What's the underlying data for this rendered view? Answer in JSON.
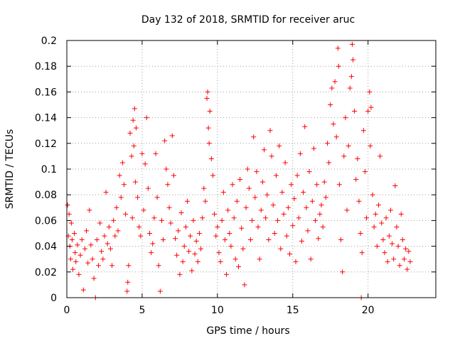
{
  "chart_data": {
    "type": "scatter",
    "title": "Day 132 of 2018, SRMTID for receiver aruc",
    "xlabel": "GPS time / hours",
    "ylabel": "SRMTID / TECUs",
    "xlim": [
      0,
      24.5
    ],
    "ylim": [
      0,
      0.2
    ],
    "x_ticks": [
      0,
      5,
      10,
      15,
      20
    ],
    "x_tick_labels": [
      "0",
      "5",
      "10",
      "15",
      "20"
    ],
    "y_ticks": [
      0,
      0.02,
      0.04,
      0.06,
      0.08,
      0.1,
      0.12,
      0.14,
      0.16,
      0.18,
      0.2
    ],
    "y_tick_labels": [
      "0",
      "0.02",
      "0.04",
      "0.06",
      "0.08",
      "0.1",
      "0.12",
      "0.14",
      "0.16",
      "0.18",
      "0.2"
    ],
    "grid": true,
    "marker": "plus",
    "point_color": "#ff0000",
    "series": [
      {
        "name": "SRMTID",
        "points": [
          [
            0.05,
            0.072
          ],
          [
            0.1,
            0.048
          ],
          [
            0.15,
            0.065
          ],
          [
            0.2,
            0.04
          ],
          [
            0.25,
            0.03
          ],
          [
            0.3,
            0.058
          ],
          [
            0.35,
            0.045
          ],
          [
            0.4,
            0.022
          ],
          [
            0.5,
            0.05
          ],
          [
            0.55,
            0.035
          ],
          [
            0.6,
            0.028
          ],
          [
            0.7,
            0.041
          ],
          [
            0.8,
            0.018
          ],
          [
            0.9,
            0.033
          ],
          [
            1.0,
            0.045
          ],
          [
            1.1,
            0.006
          ],
          [
            1.2,
            0.038
          ],
          [
            1.3,
            0.052
          ],
          [
            1.4,
            0.027
          ],
          [
            1.5,
            0.068
          ],
          [
            1.6,
            0.041
          ],
          [
            1.7,
            0.03
          ],
          [
            1.8,
            0.015
          ],
          [
            1.9,
            0.0
          ],
          [
            2.0,
            0.045
          ],
          [
            2.1,
            0.025
          ],
          [
            2.2,
            0.058
          ],
          [
            2.3,
            0.036
          ],
          [
            2.4,
            0.03
          ],
          [
            2.5,
            0.048
          ],
          [
            2.6,
            0.082
          ],
          [
            2.7,
            0.042
          ],
          [
            2.8,
            0.055
          ],
          [
            2.9,
            0.038
          ],
          [
            3.0,
            0.025
          ],
          [
            3.1,
            0.06
          ],
          [
            3.2,
            0.048
          ],
          [
            3.3,
            0.07
          ],
          [
            3.4,
            0.052
          ],
          [
            3.5,
            0.095
          ],
          [
            3.6,
            0.078
          ],
          [
            3.7,
            0.105
          ],
          [
            3.8,
            0.088
          ],
          [
            3.9,
            0.065
          ],
          [
            4.0,
            0.005
          ],
          [
            4.05,
            0.012
          ],
          [
            4.1,
            0.025
          ],
          [
            4.2,
            0.128
          ],
          [
            4.3,
            0.11
          ],
          [
            4.35,
            0.062
          ],
          [
            4.4,
            0.138
          ],
          [
            4.45,
            0.118
          ],
          [
            4.5,
            0.147
          ],
          [
            4.55,
            0.09
          ],
          [
            4.6,
            0.132
          ],
          [
            4.7,
            0.078
          ],
          [
            4.8,
            0.055
          ],
          [
            4.9,
            0.048
          ],
          [
            5.0,
            0.112
          ],
          [
            5.1,
            0.068
          ],
          [
            5.2,
            0.104
          ],
          [
            5.3,
            0.14
          ],
          [
            5.4,
            0.085
          ],
          [
            5.5,
            0.05
          ],
          [
            5.6,
            0.035
          ],
          [
            5.7,
            0.042
          ],
          [
            5.8,
            0.062
          ],
          [
            5.9,
            0.112
          ],
          [
            6.0,
            0.078
          ],
          [
            6.1,
            0.025
          ],
          [
            6.2,
            0.005
          ],
          [
            6.3,
            0.06
          ],
          [
            6.4,
            0.045
          ],
          [
            6.5,
            0.122
          ],
          [
            6.6,
            0.1
          ],
          [
            6.7,
            0.088
          ],
          [
            6.8,
            0.07
          ],
          [
            6.9,
            0.058
          ],
          [
            7.0,
            0.126
          ],
          [
            7.1,
            0.095
          ],
          [
            7.2,
            0.046
          ],
          [
            7.3,
            0.033
          ],
          [
            7.4,
            0.052
          ],
          [
            7.5,
            0.018
          ],
          [
            7.6,
            0.066
          ],
          [
            7.7,
            0.028
          ],
          [
            7.8,
            0.04
          ],
          [
            7.9,
            0.055
          ],
          [
            8.0,
            0.075
          ],
          [
            8.1,
            0.036
          ],
          [
            8.2,
            0.048
          ],
          [
            8.3,
            0.021
          ],
          [
            8.4,
            0.06
          ],
          [
            8.5,
            0.034
          ],
          [
            8.6,
            0.044
          ],
          [
            8.7,
            0.028
          ],
          [
            8.8,
            0.05
          ],
          [
            8.9,
            0.038
          ],
          [
            9.0,
            0.062
          ],
          [
            9.1,
            0.085
          ],
          [
            9.2,
            0.075
          ],
          [
            9.3,
            0.155
          ],
          [
            9.35,
            0.16
          ],
          [
            9.4,
            0.132
          ],
          [
            9.45,
            0.12
          ],
          [
            9.5,
            0.145
          ],
          [
            9.6,
            0.108
          ],
          [
            9.7,
            0.095
          ],
          [
            9.8,
            0.065
          ],
          [
            9.9,
            0.048
          ],
          [
            10.0,
            0.055
          ],
          [
            10.1,
            0.035
          ],
          [
            10.2,
            0.028
          ],
          [
            10.3,
            0.06
          ],
          [
            10.4,
            0.082
          ],
          [
            10.5,
            0.045
          ],
          [
            10.6,
            0.018
          ],
          [
            10.7,
            0.068
          ],
          [
            10.8,
            0.05
          ],
          [
            10.9,
            0.04
          ],
          [
            11.0,
            0.088
          ],
          [
            11.1,
            0.062
          ],
          [
            11.2,
            0.03
          ],
          [
            11.3,
            0.075
          ],
          [
            11.4,
            0.024
          ],
          [
            11.5,
            0.092
          ],
          [
            11.6,
            0.054
          ],
          [
            11.7,
            0.038
          ],
          [
            11.8,
            0.01
          ],
          [
            11.9,
            0.07
          ],
          [
            12.0,
            0.1
          ],
          [
            12.1,
            0.085
          ],
          [
            12.2,
            0.045
          ],
          [
            12.3,
            0.06
          ],
          [
            12.4,
            0.125
          ],
          [
            12.5,
            0.078
          ],
          [
            12.6,
            0.098
          ],
          [
            12.7,
            0.055
          ],
          [
            12.8,
            0.03
          ],
          [
            12.9,
            0.068
          ],
          [
            13.0,
            0.09
          ],
          [
            13.1,
            0.115
          ],
          [
            13.2,
            0.062
          ],
          [
            13.3,
            0.08
          ],
          [
            13.4,
            0.045
          ],
          [
            13.5,
            0.13
          ],
          [
            13.6,
            0.11
          ],
          [
            13.7,
            0.072
          ],
          [
            13.8,
            0.05
          ],
          [
            13.9,
            0.095
          ],
          [
            14.0,
            0.06
          ],
          [
            14.1,
            0.118
          ],
          [
            14.2,
            0.038
          ],
          [
            14.3,
            0.082
          ],
          [
            14.4,
            0.065
          ],
          [
            14.5,
            0.105
          ],
          [
            14.6,
            0.048
          ],
          [
            14.7,
            0.07
          ],
          [
            14.8,
            0.034
          ],
          [
            14.9,
            0.088
          ],
          [
            15.0,
            0.056
          ],
          [
            15.1,
            0.077
          ],
          [
            15.2,
            0.028
          ],
          [
            15.3,
            0.095
          ],
          [
            15.4,
            0.062
          ],
          [
            15.5,
            0.112
          ],
          [
            15.6,
            0.044
          ],
          [
            15.7,
            0.082
          ],
          [
            15.8,
            0.133
          ],
          [
            15.9,
            0.07
          ],
          [
            16.0,
            0.052
          ],
          [
            16.1,
            0.098
          ],
          [
            16.2,
            0.03
          ],
          [
            16.3,
            0.075
          ],
          [
            16.4,
            0.116
          ],
          [
            16.5,
            0.06
          ],
          [
            16.6,
            0.088
          ],
          [
            16.7,
            0.046
          ],
          [
            16.8,
            0.065
          ],
          [
            16.9,
            0.072
          ],
          [
            17.0,
            0.055
          ],
          [
            17.1,
            0.09
          ],
          [
            17.2,
            0.078
          ],
          [
            17.3,
            0.12
          ],
          [
            17.4,
            0.105
          ],
          [
            17.5,
            0.15
          ],
          [
            17.6,
            0.163
          ],
          [
            17.7,
            0.135
          ],
          [
            17.8,
            0.168
          ],
          [
            17.9,
            0.125
          ],
          [
            18.0,
            0.194
          ],
          [
            18.05,
            0.18
          ],
          [
            18.1,
            0.088
          ],
          [
            18.2,
            0.045
          ],
          [
            18.3,
            0.02
          ],
          [
            18.4,
            0.11
          ],
          [
            18.5,
            0.14
          ],
          [
            18.6,
            0.068
          ],
          [
            18.7,
            0.118
          ],
          [
            18.8,
            0.163
          ],
          [
            18.9,
            0.172
          ],
          [
            18.95,
            0.197
          ],
          [
            19.0,
            0.185
          ],
          [
            19.1,
            0.145
          ],
          [
            19.2,
            0.092
          ],
          [
            19.3,
            0.108
          ],
          [
            19.4,
            0.075
          ],
          [
            19.5,
            0.05
          ],
          [
            19.55,
            0.0
          ],
          [
            19.6,
            0.035
          ],
          [
            19.7,
            0.13
          ],
          [
            19.8,
            0.098
          ],
          [
            19.9,
            0.062
          ],
          [
            20.0,
            0.145
          ],
          [
            20.1,
            0.16
          ],
          [
            20.15,
            0.118
          ],
          [
            20.2,
            0.148
          ],
          [
            20.3,
            0.08
          ],
          [
            20.4,
            0.055
          ],
          [
            20.5,
            0.065
          ],
          [
            20.6,
            0.04
          ],
          [
            20.7,
            0.072
          ],
          [
            20.8,
            0.11
          ],
          [
            20.9,
            0.058
          ],
          [
            21.0,
            0.045
          ],
          [
            21.1,
            0.035
          ],
          [
            21.2,
            0.062
          ],
          [
            21.3,
            0.028
          ],
          [
            21.4,
            0.048
          ],
          [
            21.5,
            0.068
          ],
          [
            21.6,
            0.042
          ],
          [
            21.7,
            0.03
          ],
          [
            21.8,
            0.087
          ],
          [
            21.9,
            0.055
          ],
          [
            22.0,
            0.04
          ],
          [
            22.1,
            0.025
          ],
          [
            22.2,
            0.065
          ],
          [
            22.3,
            0.045
          ],
          [
            22.4,
            0.03
          ],
          [
            22.5,
            0.038
          ],
          [
            22.6,
            0.022
          ],
          [
            22.7,
            0.036
          ],
          [
            22.8,
            0.028
          ]
        ]
      }
    ]
  }
}
